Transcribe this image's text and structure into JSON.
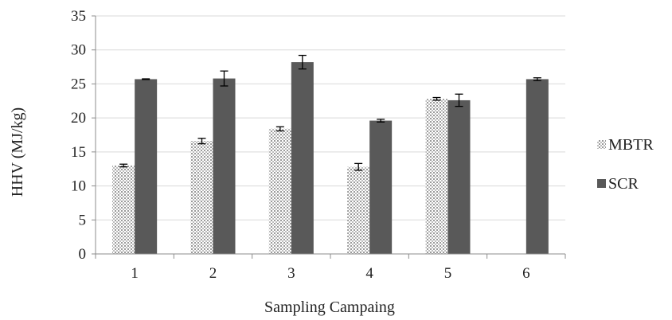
{
  "chart_data": {
    "type": "bar",
    "title": "",
    "xlabel": "Sampling Campaing",
    "ylabel": "HHV (MJ/kg)",
    "ylim": [
      0,
      35
    ],
    "yticks": [
      0,
      5,
      10,
      15,
      20,
      25,
      30,
      35
    ],
    "categories": [
      "1",
      "2",
      "3",
      "4",
      "5",
      "6"
    ],
    "grid": true,
    "legend_position": "right",
    "series": [
      {
        "name": "MBTR",
        "values": [
          13.0,
          16.6,
          18.4,
          12.8,
          22.8,
          null
        ],
        "errors": [
          0.2,
          0.4,
          0.3,
          0.5,
          0.2,
          null
        ],
        "color": "#c8c8c8",
        "pattern": "dotted"
      },
      {
        "name": "SCR",
        "values": [
          25.7,
          25.8,
          28.2,
          19.6,
          22.6,
          25.7
        ],
        "errors": [
          0.05,
          1.1,
          1.0,
          0.2,
          0.9,
          0.2
        ],
        "color": "#595959",
        "pattern": "solid"
      }
    ]
  }
}
